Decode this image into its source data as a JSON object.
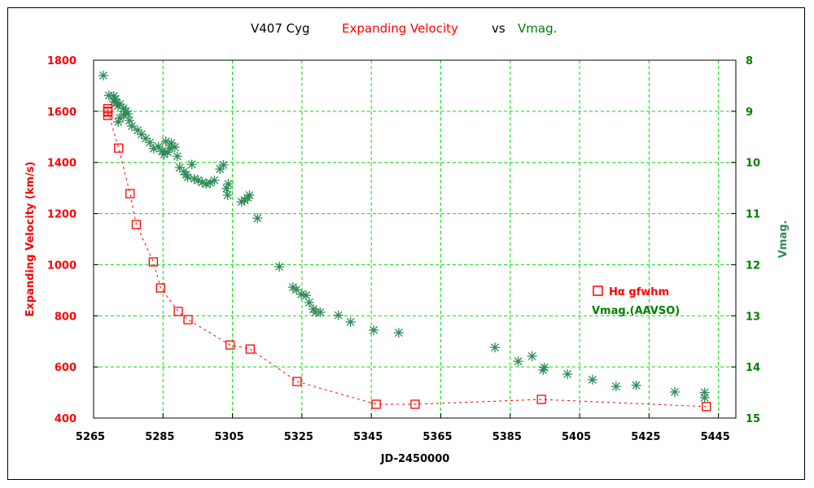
{
  "chart_data": {
    "type": "scatter",
    "title": {
      "object": "V407 Cyg",
      "series1": "Expanding Velocity",
      "vs": "vs",
      "series2": "Vmag."
    },
    "xlabel": "JD-2450000",
    "ylabel": "Expanding Velocity (km/s)",
    "y2label": "Vmag.",
    "xlim": [
      5265,
      5450
    ],
    "ylim": [
      400,
      1800
    ],
    "y2lim": [
      8,
      15
    ],
    "y2_inverted": true,
    "grid": true,
    "xticks": [
      "5265",
      "5285",
      "5305",
      "5325",
      "5345",
      "5365",
      "5385",
      "5405",
      "5425",
      "5445"
    ],
    "yticks": [
      "400",
      "600",
      "800",
      "1000",
      "1200",
      "1400",
      "1600",
      "1800"
    ],
    "y2ticks": [
      "8",
      "9",
      "10",
      "11",
      "12",
      "13",
      "14",
      "15"
    ],
    "legend_position": "right-middle",
    "colors": {
      "halpha": "#ff0000",
      "vmag": "#2e8b57",
      "grid": "#00e000",
      "title_red": "#ff0000",
      "title_green": "#008000",
      "right_axis": "#008000"
    },
    "series": [
      {
        "name": "Hα gfwhm",
        "legend_label": "Hα gfwhm",
        "axis": "left",
        "marker": "square",
        "line": "dotted",
        "x": [
          5269.1,
          5269.1,
          5269.1,
          5269.1,
          5272.2,
          5275.5,
          5277.3,
          5282.2,
          5284.3,
          5289.4,
          5292.2,
          5304.3,
          5310.1,
          5323.6,
          5346.4,
          5357.6,
          5394.0,
          5441.5
        ],
        "y": [
          1610,
          1597,
          1584,
          1600,
          1456,
          1278,
          1157,
          1011,
          909,
          817,
          785,
          686,
          670,
          543,
          454,
          454,
          473,
          445
        ]
      },
      {
        "name": "Vmag. (AAVSO)",
        "legend_label": "Vmag.(AAVSO)",
        "axis": "right",
        "marker": "asterisk",
        "x": [
          5267.8,
          5269.4,
          5270.8,
          5271.3,
          5271.5,
          5272.0,
          5270.8,
          5272.6,
          5273.6,
          5274.3,
          5274.9,
          5272.6,
          5272.1,
          5273.6,
          5275.3,
          5276.0,
          5277.7,
          5278.8,
          5280.0,
          5281.2,
          5282.3,
          5283.7,
          5284.7,
          5285.3,
          5286.3,
          5287.0,
          5285.8,
          5287.4,
          5288.4,
          5289.1,
          5289.8,
          5291.0,
          5291.7,
          5292.1,
          5293.3,
          5294.0,
          5295.1,
          5296.3,
          5297.4,
          5298.6,
          5299.8,
          5301.4,
          5302.4,
          5303.3,
          5303.6,
          5303.8,
          5307.6,
          5308.5,
          5309.4,
          5309.9,
          5312.2,
          5318.5,
          5322.4,
          5323.4,
          5324.8,
          5326.2,
          5327.1,
          5328.3,
          5329.0,
          5330.3,
          5335.5,
          5339.0,
          5345.7,
          5352.9,
          5380.6,
          5387.3,
          5391.3,
          5394.5,
          5394.8,
          5401.5,
          5408.7,
          5415.5,
          5421.3,
          5432.4,
          5441.0,
          5441.0
        ],
        "y": [
          8.3,
          8.69,
          8.7,
          8.76,
          8.83,
          8.89,
          8.81,
          8.86,
          8.94,
          9.0,
          9.05,
          9.13,
          9.21,
          9.07,
          9.18,
          9.29,
          9.37,
          9.45,
          9.53,
          9.61,
          9.73,
          9.69,
          9.78,
          9.84,
          9.8,
          9.72,
          9.59,
          9.62,
          9.7,
          9.88,
          10.1,
          10.18,
          10.24,
          10.29,
          10.04,
          10.32,
          10.35,
          10.39,
          10.42,
          10.4,
          10.35,
          10.13,
          10.05,
          10.51,
          10.64,
          10.42,
          10.77,
          10.74,
          10.69,
          10.64,
          11.09,
          12.04,
          12.44,
          12.49,
          12.58,
          12.6,
          12.74,
          12.87,
          12.93,
          12.93,
          12.99,
          13.12,
          13.28,
          13.33,
          13.62,
          13.89,
          13.79,
          14.06,
          14.01,
          14.14,
          14.25,
          14.38,
          14.36,
          14.49,
          14.6,
          14.5
        ]
      }
    ]
  }
}
